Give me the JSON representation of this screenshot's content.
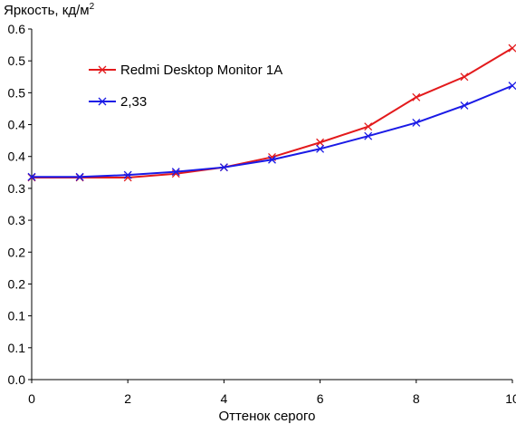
{
  "chart_data": {
    "type": "line",
    "title": "",
    "ylabel_main": "Яркость, кд/м",
    "ylabel_sup": "2",
    "xlabel": "Оттенок серого",
    "xlim": [
      0,
      10
    ],
    "ylim": [
      0,
      0.55
    ],
    "x_ticks": [
      0,
      2,
      4,
      6,
      8,
      10
    ],
    "y_tick_values": [
      0,
      0.05,
      0.1,
      0.15,
      0.2,
      0.25,
      0.3,
      0.35,
      0.4,
      0.45,
      0.5,
      0.55
    ],
    "y_tick_labels": [
      "0.0",
      "0.1",
      "0.1",
      "0.2",
      "0.2",
      "0.3",
      "0.3",
      "0.4",
      "0.4",
      "0.5",
      "0.5",
      "0.6"
    ],
    "grid": false,
    "legend_position": "top-left",
    "x": [
      0,
      1,
      2,
      3,
      4,
      5,
      6,
      7,
      8,
      9,
      10
    ],
    "series": [
      {
        "name": "Redmi Desktop Monitor 1A",
        "color": "#e31a1c",
        "marker": "x",
        "values": [
          0.317,
          0.317,
          0.317,
          0.323,
          0.333,
          0.349,
          0.372,
          0.397,
          0.443,
          0.475,
          0.52
        ]
      },
      {
        "name": "2,33",
        "color": "#1a1ae6",
        "marker": "x",
        "values": [
          0.318,
          0.318,
          0.321,
          0.326,
          0.333,
          0.345,
          0.362,
          0.382,
          0.403,
          0.43,
          0.461
        ]
      }
    ]
  }
}
